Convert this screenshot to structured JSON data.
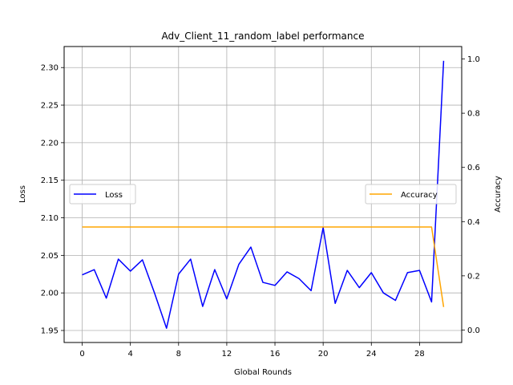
{
  "chart_data": {
    "type": "line",
    "title": "Adv_Client_11_random_label performance",
    "xlabel": "Global Rounds",
    "ylabel_left": "Loss",
    "ylabel_right": "Accuracy",
    "x": [
      0,
      1,
      2,
      3,
      4,
      5,
      6,
      7,
      8,
      9,
      10,
      11,
      12,
      13,
      14,
      15,
      16,
      17,
      18,
      19,
      20,
      21,
      22,
      23,
      24,
      25,
      26,
      27,
      28,
      29,
      30
    ],
    "xlim": [
      -1.5,
      31.5
    ],
    "xticks": [
      0,
      4,
      8,
      12,
      16,
      20,
      24,
      28
    ],
    "ylim_left": [
      1.934,
      2.328
    ],
    "yticks_left": [
      "1.95",
      "2.00",
      "2.05",
      "2.10",
      "2.15",
      "2.20",
      "2.25",
      "2.30"
    ],
    "ylim_right": [
      -0.046,
      1.046
    ],
    "yticks_right": [
      "0.0",
      "0.2",
      "0.4",
      "0.6",
      "0.8",
      "1.0"
    ],
    "grid": true,
    "series": [
      {
        "name": "Loss",
        "axis": "left",
        "color": "#0000ff",
        "legend_position": "center-left",
        "values": [
          2.024,
          2.031,
          1.993,
          2.045,
          2.029,
          2.044,
          2.0,
          1.953,
          2.025,
          2.045,
          1.982,
          2.031,
          1.992,
          2.038,
          2.061,
          2.014,
          2.01,
          2.028,
          2.019,
          2.003,
          2.087,
          1.986,
          2.03,
          2.007,
          2.027,
          2.0,
          1.99,
          2.027,
          2.03,
          1.988,
          2.309
        ]
      },
      {
        "name": "Accuracy",
        "axis": "right",
        "color": "#ffa500",
        "legend_position": "center-right",
        "values": [
          0.38,
          0.38,
          0.38,
          0.38,
          0.38,
          0.38,
          0.38,
          0.38,
          0.38,
          0.38,
          0.38,
          0.38,
          0.38,
          0.38,
          0.38,
          0.38,
          0.38,
          0.38,
          0.38,
          0.38,
          0.38,
          0.38,
          0.38,
          0.38,
          0.38,
          0.38,
          0.38,
          0.38,
          0.38,
          0.38,
          0.085
        ]
      }
    ]
  }
}
